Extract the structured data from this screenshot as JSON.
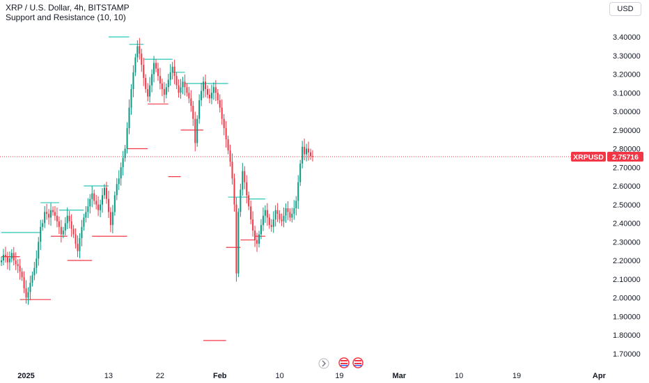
{
  "header": {
    "title": "XRP / U.S. Dollar, 4h, BITSTAMP",
    "indicator": "Support and Resistance (10, 10)",
    "currency": "USD"
  },
  "price_tag": {
    "symbol": "XRPUSD",
    "value": "2.75716",
    "color": "#f23645"
  },
  "colors": {
    "up": "#089981",
    "down": "#f23645",
    "resistance": "#26c6b6",
    "support": "#f23645"
  },
  "chart_data": {
    "type": "candlestick",
    "title": "XRP / U.S. Dollar, 4h, BITSTAMP",
    "y_ticks": [
      "3.40000",
      "3.30000",
      "3.20000",
      "3.10000",
      "3.00000",
      "2.90000",
      "2.80000",
      "2.70000",
      "2.60000",
      "2.50000",
      "2.40000",
      "2.30000",
      "2.20000",
      "2.10000",
      "2.00000",
      "1.90000",
      "1.80000",
      "1.70000"
    ],
    "ylim": [
      1.66,
      3.48
    ],
    "x_ticks": [
      "2025",
      "13",
      "22",
      "Feb",
      "10",
      "19",
      "Mar",
      "10",
      "19",
      "Apr"
    ],
    "x_tick_index": [
      12,
      52,
      77,
      106,
      135,
      164,
      193,
      222,
      250,
      290
    ],
    "bold_ticks": [
      "2025",
      "Feb",
      "Mar",
      "Apr"
    ],
    "last_price": 2.75716,
    "series_close": [
      2.2,
      2.23,
      2.22,
      2.19,
      2.21,
      2.24,
      2.2,
      2.18,
      2.17,
      2.14,
      2.11,
      2.05,
      2.0,
      2.03,
      2.08,
      2.12,
      2.16,
      2.21,
      2.3,
      2.38,
      2.4,
      2.46,
      2.45,
      2.43,
      2.47,
      2.46,
      2.44,
      2.41,
      2.38,
      2.34,
      2.36,
      2.4,
      2.44,
      2.41,
      2.37,
      2.34,
      2.29,
      2.25,
      2.32,
      2.38,
      2.43,
      2.46,
      2.49,
      2.53,
      2.56,
      2.52,
      2.5,
      2.47,
      2.5,
      2.55,
      2.59,
      2.53,
      2.46,
      2.39,
      2.46,
      2.55,
      2.61,
      2.64,
      2.7,
      2.75,
      2.8,
      2.91,
      3.02,
      3.12,
      3.21,
      3.29,
      3.35,
      3.31,
      3.25,
      3.18,
      3.12,
      3.08,
      3.14,
      3.2,
      3.26,
      3.23,
      3.19,
      3.15,
      3.12,
      3.09,
      3.13,
      3.17,
      3.21,
      3.24,
      3.19,
      3.14,
      3.1,
      3.13,
      3.16,
      3.13,
      3.1,
      3.07,
      3.03,
      2.96,
      2.83,
      2.96,
      3.06,
      3.11,
      3.16,
      3.12,
      3.09,
      3.07,
      3.1,
      3.13,
      3.1,
      3.06,
      3.02,
      2.96,
      2.91,
      2.85,
      2.79,
      2.73,
      2.64,
      2.5,
      2.13,
      2.46,
      2.58,
      2.68,
      2.62,
      2.55,
      2.49,
      2.42,
      2.36,
      2.31,
      2.29,
      2.34,
      2.39,
      2.44,
      2.47,
      2.43,
      2.39,
      2.38,
      2.42,
      2.47,
      2.45,
      2.42,
      2.41,
      2.44,
      2.48,
      2.46,
      2.43,
      2.45,
      2.48,
      2.52,
      2.62,
      2.72,
      2.81,
      2.77,
      2.8,
      2.78,
      2.76,
      2.75716
    ],
    "levels": [
      {
        "type": "resistance",
        "value": 2.35,
        "x0": 0,
        "x1": 19
      },
      {
        "type": "resistance",
        "value": 2.51,
        "x0": 19,
        "x1": 28
      },
      {
        "type": "resistance",
        "value": 2.47,
        "x0": 28,
        "x1": 40
      },
      {
        "type": "resistance",
        "value": 2.6,
        "x0": 40,
        "x1": 52
      },
      {
        "type": "resistance",
        "value": 3.4,
        "x0": 52,
        "x1": 62
      },
      {
        "type": "resistance",
        "value": 3.36,
        "x0": 62,
        "x1": 69
      },
      {
        "type": "resistance",
        "value": 3.28,
        "x0": 69,
        "x1": 83
      },
      {
        "type": "resistance",
        "value": 3.21,
        "x0": 83,
        "x1": 89
      },
      {
        "type": "resistance",
        "value": 3.15,
        "x0": 89,
        "x1": 110
      },
      {
        "type": "resistance",
        "value": 2.54,
        "x0": 110,
        "x1": 120
      },
      {
        "type": "resistance",
        "value": 2.53,
        "x0": 120,
        "x1": 128
      },
      {
        "type": "support",
        "value": 2.22,
        "x0": 0,
        "x1": 9
      },
      {
        "type": "support",
        "value": 1.99,
        "x0": 9,
        "x1": 24
      },
      {
        "type": "support",
        "value": 2.33,
        "x0": 24,
        "x1": 32
      },
      {
        "type": "support",
        "value": 2.2,
        "x0": 32,
        "x1": 44
      },
      {
        "type": "support",
        "value": 2.33,
        "x0": 44,
        "x1": 61
      },
      {
        "type": "support",
        "value": 2.8,
        "x0": 61,
        "x1": 71
      },
      {
        "type": "support",
        "value": 3.04,
        "x0": 71,
        "x1": 81
      },
      {
        "type": "support",
        "value": 2.65,
        "x0": 81,
        "x1": 87
      },
      {
        "type": "support",
        "value": 2.9,
        "x0": 87,
        "x1": 98
      },
      {
        "type": "support",
        "value": 1.77,
        "x0": 98,
        "x1": 109
      },
      {
        "type": "support",
        "value": 2.27,
        "x0": 109,
        "x1": 116
      },
      {
        "type": "support",
        "value": 2.31,
        "x0": 116,
        "x1": 123
      },
      {
        "type": "support",
        "value": 2.33,
        "x0": 123,
        "x1": 128
      }
    ]
  }
}
